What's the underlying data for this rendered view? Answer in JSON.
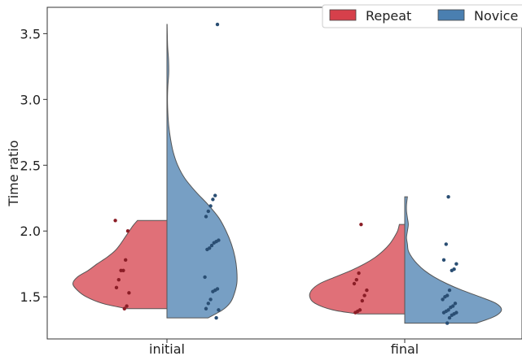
{
  "chart_data": {
    "type": "violin",
    "ylabel": "Time ratio",
    "xlabel": "",
    "ylim": [
      1.18,
      3.7
    ],
    "yticks": [
      1.5,
      2.0,
      2.5,
      3.0,
      3.5
    ],
    "ytick_labels": [
      "1.5",
      "2.0",
      "2.5",
      "3.0",
      "3.5"
    ],
    "categories": [
      "initial",
      "final"
    ],
    "legend": {
      "placement": "top-right",
      "entries": [
        "Repeat",
        "Novice"
      ]
    },
    "series": [
      {
        "name": "Repeat",
        "side": "left",
        "color": "#d6404b",
        "violins": [
          {
            "category": "initial",
            "min": 1.41,
            "max": 2.08,
            "density": [
              [
                1.41,
                0.45
              ],
              [
                1.45,
                0.72
              ],
              [
                1.5,
                0.9
              ],
              [
                1.55,
                1.0
              ],
              [
                1.6,
                1.05
              ],
              [
                1.65,
                1.0
              ],
              [
                1.7,
                0.88
              ],
              [
                1.75,
                0.78
              ],
              [
                1.8,
                0.67
              ],
              [
                1.85,
                0.58
              ],
              [
                1.9,
                0.52
              ],
              [
                1.95,
                0.47
              ],
              [
                2.0,
                0.42
              ],
              [
                2.04,
                0.38
              ],
              [
                2.08,
                0.33
              ]
            ],
            "points": [
              2.08,
              2.0,
              1.78,
              1.7,
              1.7,
              1.63,
              1.57,
              1.53,
              1.43,
              1.41
            ]
          },
          {
            "category": "final",
            "min": 1.37,
            "max": 2.05,
            "density": [
              [
                1.37,
                0.52
              ],
              [
                1.4,
                0.8
              ],
              [
                1.45,
                1.0
              ],
              [
                1.5,
                1.06
              ],
              [
                1.55,
                1.04
              ],
              [
                1.6,
                0.95
              ],
              [
                1.65,
                0.78
              ],
              [
                1.7,
                0.6
              ],
              [
                1.75,
                0.45
              ],
              [
                1.8,
                0.33
              ],
              [
                1.85,
                0.24
              ],
              [
                1.9,
                0.17
              ],
              [
                1.95,
                0.12
              ],
              [
                2.0,
                0.08
              ],
              [
                2.05,
                0.06
              ]
            ],
            "points": [
              2.05,
              1.68,
              1.63,
              1.6,
              1.55,
              1.51,
              1.47,
              1.4,
              1.39,
              1.38
            ]
          }
        ]
      },
      {
        "name": "Novice",
        "side": "right",
        "color": "#4a7fb0",
        "violins": [
          {
            "category": "initial",
            "min": 1.34,
            "max": 3.57,
            "density": [
              [
                1.34,
                0.46
              ],
              [
                1.4,
                0.62
              ],
              [
                1.45,
                0.7
              ],
              [
                1.5,
                0.74
              ],
              [
                1.6,
                0.78
              ],
              [
                1.7,
                0.78
              ],
              [
                1.8,
                0.76
              ],
              [
                1.9,
                0.72
              ],
              [
                2.0,
                0.66
              ],
              [
                2.1,
                0.58
              ],
              [
                2.2,
                0.46
              ],
              [
                2.3,
                0.32
              ],
              [
                2.4,
                0.2
              ],
              [
                2.5,
                0.12
              ],
              [
                2.6,
                0.07
              ],
              [
                2.7,
                0.04
              ],
              [
                2.8,
                0.02
              ],
              [
                2.9,
                0.01
              ],
              [
                3.0,
                0.006
              ],
              [
                3.1,
                0.01
              ],
              [
                3.2,
                0.02
              ],
              [
                3.3,
                0.018
              ],
              [
                3.4,
                0.008
              ],
              [
                3.5,
                0.004
              ],
              [
                3.57,
                0.002
              ]
            ],
            "points": [
              3.57,
              2.27,
              2.24,
              2.19,
              2.15,
              2.11,
              1.93,
              1.92,
              1.91,
              1.89,
              1.87,
              1.86,
              1.65,
              1.56,
              1.55,
              1.54,
              1.48,
              1.45,
              1.41,
              1.4,
              1.34
            ]
          },
          {
            "category": "final",
            "min": 1.3,
            "max": 2.26,
            "density": [
              [
                1.3,
                0.8
              ],
              [
                1.35,
                1.0
              ],
              [
                1.4,
                1.08
              ],
              [
                1.45,
                1.02
              ],
              [
                1.5,
                0.84
              ],
              [
                1.55,
                0.64
              ],
              [
                1.6,
                0.47
              ],
              [
                1.65,
                0.33
              ],
              [
                1.7,
                0.22
              ],
              [
                1.75,
                0.14
              ],
              [
                1.8,
                0.08
              ],
              [
                1.85,
                0.04
              ],
              [
                1.9,
                0.03
              ],
              [
                1.95,
                0.02
              ],
              [
                2.0,
                0.03
              ],
              [
                2.05,
                0.04
              ],
              [
                2.1,
                0.03
              ],
              [
                2.15,
                0.02
              ],
              [
                2.2,
                0.02
              ],
              [
                2.26,
                0.03
              ]
            ],
            "points": [
              2.26,
              1.9,
              1.78,
              1.75,
              1.71,
              1.7,
              1.55,
              1.51,
              1.5,
              1.48,
              1.45,
              1.43,
              1.42,
              1.4,
              1.39,
              1.38,
              1.38,
              1.37,
              1.36,
              1.34,
              1.3
            ]
          }
        ]
      }
    ]
  }
}
